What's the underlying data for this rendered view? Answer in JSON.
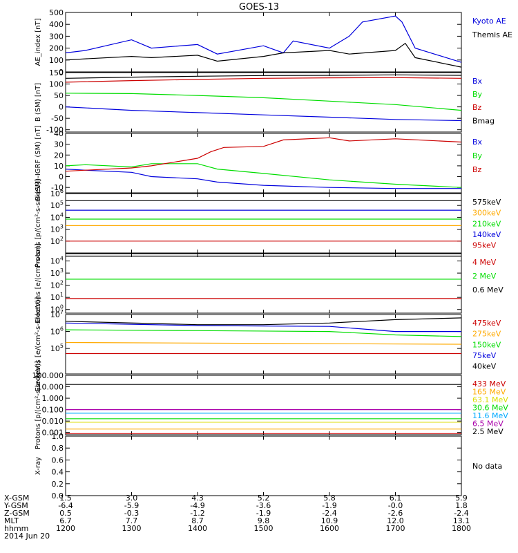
{
  "title": "GOES-13",
  "colors": {
    "black": "#000000",
    "blue": "#0000dd",
    "red": "#cc0000",
    "green": "#00dd00",
    "orange": "#ffaa00",
    "cyan": "#00aaff",
    "yellow": "#dddd00",
    "purple": "#aa00aa"
  },
  "chart_data": [
    {
      "type": "line",
      "id": "ae",
      "ylabel": "AE_index [nT]",
      "ylim": [
        0,
        500
      ],
      "yticks": [
        "500",
        "400",
        "300",
        "200",
        "100",
        "0"
      ],
      "ytick_values": [
        500,
        400,
        300,
        200,
        100,
        0
      ],
      "series": [
        {
          "name": "Kyoto AE",
          "color": "#0000dd",
          "x": [
            1200,
            1230,
            1300,
            1330,
            1400,
            1430,
            1500,
            1530,
            1545,
            1600,
            1630,
            1650,
            1700,
            1710,
            1730,
            1800
          ],
          "values": [
            160,
            180,
            270,
            200,
            230,
            150,
            220,
            160,
            260,
            200,
            300,
            420,
            470,
            420,
            200,
            80
          ]
        },
        {
          "name": "Themis AE",
          "color": "#000000",
          "x": [
            1200,
            1230,
            1300,
            1330,
            1400,
            1430,
            1500,
            1530,
            1600,
            1630,
            1700,
            1715,
            1730,
            1800
          ],
          "values": [
            100,
            110,
            130,
            120,
            140,
            90,
            130,
            160,
            180,
            150,
            180,
            240,
            120,
            40
          ]
        }
      ]
    },
    {
      "type": "line",
      "id": "bsm",
      "ylabel": "B (SM) [nT]",
      "ylim": [
        -110,
        150
      ],
      "yticks": [
        "150",
        "100",
        "50",
        "0",
        "-50",
        "-100"
      ],
      "ytick_values": [
        150,
        100,
        50,
        0,
        -50,
        -100
      ],
      "series": [
        {
          "name": "Bx",
          "color": "#0000dd",
          "x": [
            1200,
            1300,
            1400,
            1500,
            1600,
            1700,
            1800
          ],
          "values": [
            0,
            -15,
            -25,
            -35,
            -45,
            -55,
            -60
          ]
        },
        {
          "name": "By",
          "color": "#00dd00",
          "x": [
            1200,
            1300,
            1400,
            1500,
            1600,
            1700,
            1800
          ],
          "values": [
            60,
            58,
            50,
            40,
            25,
            10,
            -15
          ]
        },
        {
          "name": "Bz",
          "color": "#cc0000",
          "x": [
            1200,
            1300,
            1400,
            1500,
            1600,
            1700,
            1800
          ],
          "values": [
            108,
            115,
            120,
            125,
            127,
            128,
            125
          ]
        },
        {
          "name": "Bmag",
          "color": "#000000",
          "x": [
            1200,
            1300,
            1400,
            1500,
            1600,
            1700,
            1800
          ],
          "values": [
            125,
            130,
            134,
            137,
            138,
            140,
            138
          ]
        }
      ]
    },
    {
      "type": "line",
      "id": "bigrf",
      "ylabel": "B (SM)-IGRF (SM) [nT]",
      "ylim": [
        -15,
        40
      ],
      "yticks": [
        "40",
        "30",
        "20",
        "10",
        "0",
        "-10"
      ],
      "ytick_values": [
        40,
        30,
        20,
        10,
        0,
        -10
      ],
      "series": [
        {
          "name": "Bx",
          "color": "#0000dd",
          "x": [
            1200,
            1230,
            1300,
            1330,
            1400,
            1430,
            1500,
            1600,
            1700,
            1800
          ],
          "values": [
            7,
            6,
            4,
            0,
            -2,
            -5,
            -8,
            -10,
            -11,
            -11
          ]
        },
        {
          "name": "By",
          "color": "#00dd00",
          "x": [
            1200,
            1230,
            1300,
            1330,
            1400,
            1430,
            1500,
            1600,
            1700,
            1800
          ],
          "values": [
            10,
            11,
            9,
            12,
            12,
            7,
            3,
            -3,
            -7,
            -10
          ]
        },
        {
          "name": "Bz",
          "color": "#cc0000",
          "x": [
            1200,
            1230,
            1300,
            1330,
            1400,
            1420,
            1440,
            1500,
            1530,
            1600,
            1630,
            1700,
            1800
          ],
          "values": [
            5,
            6,
            8,
            10,
            17,
            23,
            27,
            28,
            34,
            36,
            33,
            35,
            32
          ]
        }
      ]
    },
    {
      "type": "line",
      "id": "protons1",
      "log": true,
      "ylabel": "Protons [p/(cm²-s-sr-keV)]",
      "ylim": [
        1,
        6
      ],
      "yticks": [
        "10^6",
        "10^5",
        "10^4",
        "10^3",
        "10^2"
      ],
      "ytick_values": [
        6,
        5,
        4,
        3,
        2
      ],
      "series": [
        {
          "name": "575keV",
          "color": "#000000",
          "x": [
            1200,
            1800
          ],
          "values": [
            5.4,
            5.4
          ]
        },
        {
          "name": "300keV",
          "color": "#ffaa00",
          "x": [
            1200,
            1800
          ],
          "values": [
            3.3,
            3.3
          ]
        },
        {
          "name": "210keV",
          "color": "#00dd00",
          "x": [
            1200,
            1800
          ],
          "values": [
            3.85,
            3.85
          ]
        },
        {
          "name": "140keV",
          "color": "#0000dd",
          "x": [
            1200,
            1800
          ],
          "values": [
            4.6,
            4.6
          ]
        },
        {
          "name": "95keV",
          "color": "#cc0000",
          "x": [
            1200,
            1800
          ],
          "values": [
            2.0,
            2.0
          ]
        }
      ]
    },
    {
      "type": "line",
      "id": "electrons1",
      "log": true,
      "ylabel": "Electrons [e/(cm²-s-sr)]",
      "ylim": [
        -0.3,
        4.6
      ],
      "yticks": [
        "10^4",
        "10^3",
        "10^2",
        "10^1",
        "10^0"
      ],
      "ytick_values": [
        4,
        3,
        2,
        1,
        0
      ],
      "series": [
        {
          "name": "4 MeV",
          "color": "#cc0000",
          "x": [
            1200,
            1800
          ],
          "values": [
            0.9,
            0.9
          ]
        },
        {
          "name": "2 MeV",
          "color": "#00dd00",
          "x": [
            1200,
            1800
          ],
          "values": [
            2.5,
            2.5
          ]
        },
        {
          "name": "0.6 MeV",
          "color": "#000000",
          "x": [
            1200,
            1800
          ],
          "values": [
            4.4,
            4.4
          ]
        }
      ]
    },
    {
      "type": "line",
      "id": "electrons2",
      "log": true,
      "ylabel": "Electrons [e/(cm²-s-sr-keV)]",
      "ylim": [
        3.5,
        7
      ],
      "yticks": [
        "10^7",
        "10^6",
        "10^5"
      ],
      "ytick_values": [
        7,
        6,
        5
      ],
      "series": [
        {
          "name": "475keV",
          "color": "#cc0000",
          "x": [
            1200,
            1800
          ],
          "values": [
            4.7,
            4.7
          ]
        },
        {
          "name": "275keV",
          "color": "#ffaa00",
          "x": [
            1200,
            1800
          ],
          "values": [
            5.35,
            5.25
          ]
        },
        {
          "name": "150keV",
          "color": "#00dd00",
          "x": [
            1200,
            1400,
            1600,
            1700,
            1800
          ],
          "values": [
            6.1,
            6.05,
            6.0,
            5.8,
            5.7
          ]
        },
        {
          "name": "75keV",
          "color": "#0000dd",
          "x": [
            1200,
            1400,
            1600,
            1700,
            1800
          ],
          "values": [
            6.5,
            6.35,
            6.3,
            6.0,
            6.0
          ]
        },
        {
          "name": "40keV",
          "color": "#000000",
          "x": [
            1200,
            1400,
            1500,
            1600,
            1700,
            1800
          ],
          "values": [
            6.6,
            6.4,
            6.4,
            6.5,
            6.7,
            6.8
          ]
        }
      ]
    },
    {
      "type": "line",
      "id": "protons2",
      "log": true,
      "ylabel": "Protons [p/(cm²-s-sr-keV)]",
      "ylim": [
        -3.2,
        2
      ],
      "yticks": [
        "100.000",
        "10.000",
        "1.000",
        "0.100",
        "0.010",
        "0.001"
      ],
      "ytick_values": [
        2,
        1,
        0,
        -1,
        -2,
        -3
      ],
      "series": [
        {
          "name": "433 MeV",
          "color": "#cc0000",
          "x": [
            1200,
            1800
          ],
          "values": [
            -3.1,
            -3.1
          ]
        },
        {
          "name": "165 MeV",
          "color": "#ffaa00",
          "x": [
            1200,
            1800
          ],
          "values": [
            -2.7,
            -2.7
          ]
        },
        {
          "name": "63.1 MeV",
          "color": "#dddd00",
          "x": [
            1200,
            1800
          ],
          "values": [
            -2.1,
            -2.1
          ]
        },
        {
          "name": "30.6 MeV",
          "color": "#00dd00",
          "x": [
            1200,
            1800
          ],
          "values": [
            -1.8,
            -1.8
          ]
        },
        {
          "name": "11.6 MeV",
          "color": "#00aaff",
          "x": [
            1200,
            1800
          ],
          "values": [
            -1.3,
            -1.3
          ]
        },
        {
          "name": "6.5 MeV",
          "color": "#aa00aa",
          "x": [
            1200,
            1800
          ],
          "values": [
            -1.0,
            -1.0
          ]
        },
        {
          "name": "2.5 MeV",
          "color": "#000000",
          "x": [
            1200,
            1800
          ],
          "values": [
            1.2,
            1.2
          ]
        }
      ]
    },
    {
      "type": "line",
      "id": "xray",
      "ylabel": "X-ray",
      "ylim": [
        0,
        1
      ],
      "yticks": [
        "1.0",
        "0.8",
        "0.6",
        "0.4",
        "0.2",
        "0.0"
      ],
      "ytick_values": [
        1,
        0.8,
        0.6,
        0.4,
        0.2,
        0
      ],
      "note": "No data",
      "series": []
    }
  ],
  "xaxis": {
    "rows": [
      {
        "label": "X-GSM",
        "values": [
          "1.5",
          "3.0",
          "4.3",
          "5.2",
          "5.8",
          "6.1",
          "5.9"
        ]
      },
      {
        "label": "Y-GSM",
        "values": [
          "-6.4",
          "-5.9",
          "-4.9",
          "-3.6",
          "-1.9",
          "-0.0",
          "1.8"
        ]
      },
      {
        "label": "Z-GSM",
        "values": [
          "0.5",
          "-0.3",
          "-1.2",
          "-1.9",
          "-2.4",
          "-2.6",
          "-2.4"
        ]
      },
      {
        "label": "MLT",
        "values": [
          "6.7",
          "7.7",
          "8.7",
          "9.8",
          "10.9",
          "12.0",
          "13.1"
        ]
      },
      {
        "label": "hhmm",
        "values": [
          "1200",
          "1300",
          "1400",
          "1500",
          "1600",
          "1700",
          "1800"
        ]
      }
    ],
    "date": "2014 Jun 20",
    "range": [
      1200,
      1800
    ]
  }
}
